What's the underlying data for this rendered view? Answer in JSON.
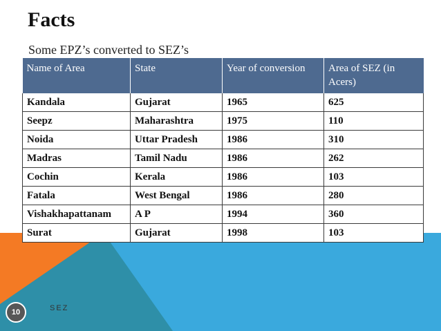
{
  "slide": {
    "title": "Facts",
    "subtitle": "Some EPZ’s converted to SEZ’s",
    "page_number": "10",
    "footer": "SEZ",
    "colors": {
      "header_fill": "#4e6a90",
      "band_blue": "#3aa9dd",
      "band_teal": "#2e8fa8",
      "band_orange": "#f47a24",
      "badge": "#575757"
    }
  },
  "table": {
    "headers": [
      "Name of Area",
      "State",
      "Year of conversion",
      "Area of SEZ (in Acers)"
    ],
    "rows": [
      [
        "Kandala",
        "Gujarat",
        "1965",
        "625"
      ],
      [
        "Seepz",
        "Maharashtra",
        "1975",
        "110"
      ],
      [
        "Noida",
        "Uttar Pradesh",
        "1986",
        "310"
      ],
      [
        "Madras",
        "Tamil Nadu",
        "1986",
        "262"
      ],
      [
        "Cochin",
        "Kerala",
        "1986",
        "103"
      ],
      [
        "Fatala",
        "West Bengal",
        "1986",
        "280"
      ],
      [
        "Vishakhapattanam",
        "A P",
        "1994",
        "360"
      ],
      [
        "Surat",
        "Gujarat",
        "1998",
        "103"
      ]
    ]
  }
}
